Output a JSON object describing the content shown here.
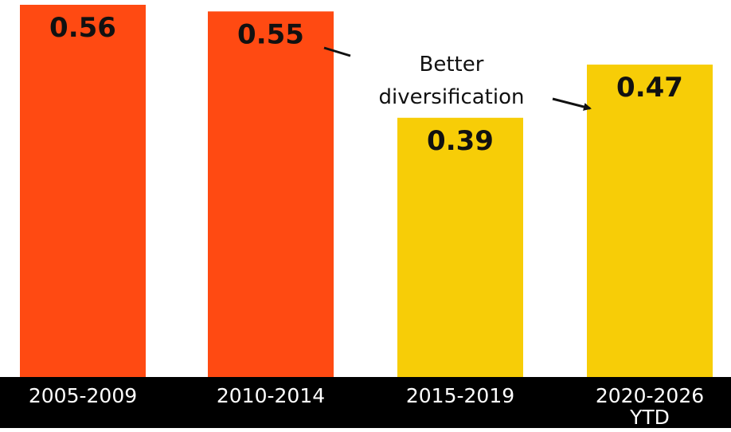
{
  "chart_data": {
    "type": "bar",
    "title": "",
    "xlabel": "",
    "ylabel": "",
    "categories": [
      "2005-2009",
      "2010-2014",
      "2015-2019",
      "2020-2026 YTD"
    ],
    "category_lines": [
      [
        "2005-2009"
      ],
      [
        "2010-2014"
      ],
      [
        "2015-2019"
      ],
      [
        "2020-2026",
        "YTD"
      ]
    ],
    "values": [
      0.56,
      0.55,
      0.39,
      0.47
    ],
    "value_labels": [
      "0.56",
      "0.55",
      "0.39",
      "0.47"
    ],
    "bar_colors": [
      "#FF4A12",
      "#FF4A12",
      "#F7CD07",
      "#F7CD07"
    ],
    "ylim": [
      0,
      0.56
    ],
    "grid": false,
    "legend": "none",
    "annotation": {
      "lines": [
        "Better",
        "diversification"
      ]
    }
  }
}
